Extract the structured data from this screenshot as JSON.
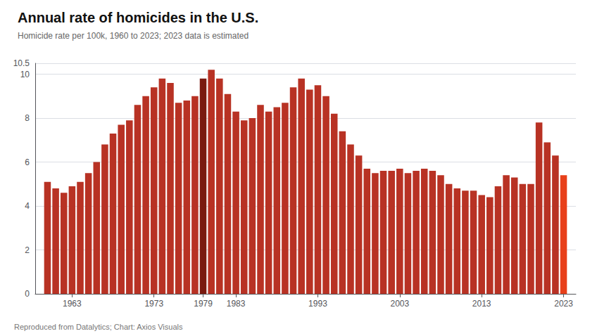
{
  "chart_data": {
    "type": "bar",
    "title": "Annual rate of homicides in the U.S.",
    "subtitle": "Homicide rate per 100k, 1960 to 2023; 2023 data is estimated",
    "annotations": [
      "Reproduced from Datalytics; Chart: Axios Visuals"
    ],
    "x": [
      1960,
      1961,
      1962,
      1963,
      1964,
      1965,
      1966,
      1967,
      1968,
      1969,
      1970,
      1971,
      1972,
      1973,
      1974,
      1975,
      1976,
      1977,
      1978,
      1979,
      1980,
      1981,
      1982,
      1983,
      1984,
      1985,
      1986,
      1987,
      1988,
      1989,
      1990,
      1991,
      1992,
      1993,
      1994,
      1995,
      1996,
      1997,
      1998,
      1999,
      2000,
      2001,
      2002,
      2003,
      2004,
      2005,
      2006,
      2007,
      2008,
      2009,
      2010,
      2011,
      2012,
      2013,
      2014,
      2015,
      2016,
      2017,
      2018,
      2019,
      2020,
      2021,
      2022,
      2023
    ],
    "values": [
      5.1,
      4.8,
      4.6,
      4.9,
      5.1,
      5.5,
      6.0,
      6.8,
      7.3,
      7.7,
      7.9,
      8.6,
      9.0,
      9.4,
      9.8,
      9.6,
      8.7,
      8.8,
      9.0,
      9.8,
      10.2,
      9.8,
      9.1,
      8.3,
      7.9,
      8.0,
      8.6,
      8.3,
      8.5,
      8.7,
      9.4,
      9.8,
      9.3,
      9.5,
      9.0,
      8.2,
      7.4,
      6.8,
      6.3,
      5.7,
      5.5,
      5.6,
      5.6,
      5.7,
      5.5,
      5.6,
      5.7,
      5.6,
      5.4,
      5.0,
      4.8,
      4.7,
      4.7,
      4.5,
      4.4,
      4.9,
      5.4,
      5.3,
      5.0,
      5.0,
      7.8,
      6.9,
      6.3,
      5.4
    ],
    "colors": [
      "#b83224",
      "#b83224",
      "#b83224",
      "#b83224",
      "#b83224",
      "#b83224",
      "#b83224",
      "#b83224",
      "#b83224",
      "#b83224",
      "#b83224",
      "#b83224",
      "#b83224",
      "#b83224",
      "#b83224",
      "#b83224",
      "#b83224",
      "#b83224",
      "#b83224",
      "#7a1a10",
      "#b83224",
      "#b83224",
      "#b83224",
      "#b83224",
      "#b83224",
      "#b83224",
      "#b83224",
      "#b83224",
      "#b83224",
      "#b83224",
      "#b83224",
      "#b83224",
      "#b83224",
      "#b83224",
      "#b83224",
      "#b83224",
      "#b83224",
      "#b83224",
      "#b83224",
      "#b83224",
      "#b83224",
      "#b83224",
      "#b83224",
      "#b83224",
      "#b83224",
      "#b83224",
      "#b83224",
      "#b83224",
      "#b83224",
      "#b83224",
      "#b83224",
      "#b83224",
      "#b83224",
      "#b83224",
      "#b83224",
      "#b83224",
      "#b83224",
      "#b83224",
      "#b83224",
      "#b83224",
      "#b83224",
      "#b83224",
      "#b83224",
      "#e8401a"
    ],
    "xlim": [
      1958.5,
      2024.5
    ],
    "xticks": [
      1963,
      1973,
      1979,
      1983,
      1993,
      2003,
      2013,
      2023
    ],
    "ylim": [
      0,
      10.5
    ],
    "yticks": [
      0,
      2,
      4,
      6,
      8,
      10
    ],
    "grid": true
  }
}
